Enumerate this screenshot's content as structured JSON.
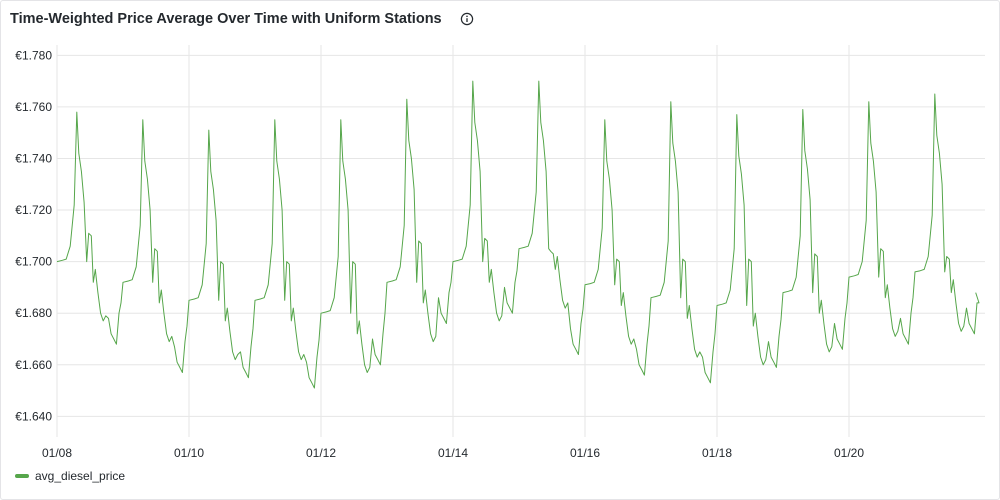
{
  "panel": {
    "title": "Time-Weighted Price Average Over Time with Uniform Stations",
    "info_icon": "info-circle-icon"
  },
  "colors": {
    "series": "#56a64b",
    "grid": "#e6e6e6",
    "text": "#24292e"
  },
  "chart_data": {
    "type": "line",
    "title": "Time-Weighted Price Average Over Time with Uniform Stations",
    "xlabel": "",
    "ylabel": "",
    "x_range": [
      "01/08 00:00",
      "01/21 22:00"
    ],
    "x_ticks": [
      "01/08",
      "01/10",
      "01/12",
      "01/14",
      "01/16",
      "01/18",
      "01/20"
    ],
    "x_tick_days": [
      0,
      2,
      4,
      6,
      8,
      10,
      12
    ],
    "ylim": [
      1.632,
      1.784
    ],
    "y_ticks": [
      1.64,
      1.66,
      1.68,
      1.7,
      1.72,
      1.74,
      1.76,
      1.78
    ],
    "y_tick_labels": [
      "€1.640",
      "€1.660",
      "€1.680",
      "€1.700",
      "€1.720",
      "€1.740",
      "€1.760",
      "€1.780"
    ],
    "grid": true,
    "legend_position": "bottom-left",
    "series": [
      {
        "name": "avg_diesel_price",
        "daily_pattern": [
          {
            "date": "01/08",
            "low_before": 1.7,
            "peak": 1.758,
            "secondary": 1.711,
            "trough": 1.668
          },
          {
            "date": "01/09",
            "low_before": 1.692,
            "peak": 1.755,
            "secondary": 1.705,
            "trough": 1.657
          },
          {
            "date": "01/10",
            "low_before": 1.685,
            "peak": 1.751,
            "secondary": 1.7,
            "trough": 1.655
          },
          {
            "date": "01/11",
            "low_before": 1.685,
            "peak": 1.755,
            "secondary": 1.7,
            "trough": 1.651
          },
          {
            "date": "01/12",
            "low_before": 1.68,
            "peak": 1.755,
            "secondary": 1.7,
            "trough": 1.66
          },
          {
            "date": "01/13",
            "low_before": 1.692,
            "peak": 1.763,
            "secondary": 1.708,
            "trough": 1.676
          },
          {
            "date": "01/14",
            "low_before": 1.7,
            "peak": 1.77,
            "secondary": 1.709,
            "trough": 1.68
          },
          {
            "date": "01/15",
            "low_before": 1.705,
            "peak": 1.77,
            "secondary": 1.704,
            "trough": 1.664
          },
          {
            "date": "01/16",
            "low_before": 1.691,
            "peak": 1.755,
            "secondary": 1.701,
            "trough": 1.656
          },
          {
            "date": "01/17",
            "low_before": 1.686,
            "peak": 1.762,
            "secondary": 1.701,
            "trough": 1.653
          },
          {
            "date": "01/18",
            "low_before": 1.683,
            "peak": 1.757,
            "secondary": 1.701,
            "trough": 1.659
          },
          {
            "date": "01/19",
            "low_before": 1.688,
            "peak": 1.759,
            "secondary": 1.703,
            "trough": 1.666
          },
          {
            "date": "01/20",
            "low_before": 1.694,
            "peak": 1.762,
            "secondary": 1.705,
            "trough": 1.668
          },
          {
            "date": "01/21",
            "low_before": 1.696,
            "peak": 1.765,
            "secondary": 1.702,
            "trough": 1.672
          }
        ],
        "end_value": 1.688
      }
    ]
  },
  "legend": {
    "items": [
      {
        "label": "avg_diesel_price",
        "color": "#56a64b"
      }
    ]
  }
}
